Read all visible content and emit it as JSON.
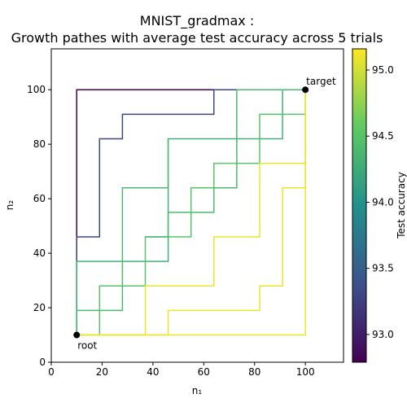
{
  "chart_data": {
    "type": "line",
    "title": [
      "MNIST_gradmax :",
      "Growth pathes with average test accuracy across 5 trials"
    ],
    "x_label": "n₁",
    "y_label": "n₂",
    "xlim": [
      0,
      115
    ],
    "ylim": [
      0,
      115
    ],
    "xticks": [
      0,
      20,
      40,
      60,
      80,
      100
    ],
    "yticks": [
      0,
      20,
      40,
      60,
      80,
      100
    ],
    "colormap": "viridis",
    "colorbar": {
      "label": "Test accuracy",
      "clim": [
        92.79,
        95.16
      ],
      "ticks": [
        {
          "value": 93,
          "label": "93.0"
        },
        {
          "value": 93.5,
          "label": "93.5"
        },
        {
          "value": 94,
          "label": "94.0"
        },
        {
          "value": 94.5,
          "label": "94.5"
        },
        {
          "value": 95,
          "label": "95.0"
        }
      ]
    },
    "series": [
      {
        "value": 92.8,
        "x": [
          10,
          10,
          100
        ],
        "y": [
          10,
          100,
          100
        ]
      },
      {
        "value": 93.3,
        "x": [
          10,
          10,
          19,
          19,
          28,
          28,
          64,
          64,
          100
        ],
        "y": [
          10,
          46,
          46,
          82,
          82,
          91,
          91,
          100,
          100
        ]
      },
      {
        "value": 94.3,
        "x": [
          10,
          10,
          46,
          46,
          91,
          91,
          100
        ],
        "y": [
          10,
          37,
          37,
          82,
          82,
          100,
          100
        ]
      },
      {
        "value": 94.4,
        "x": [
          10,
          10,
          28,
          28,
          46,
          46
        ],
        "y": [
          10,
          19,
          19,
          64,
          64,
          82
        ]
      },
      {
        "value": 94.5,
        "x": [
          10,
          19,
          19,
          37,
          37,
          55,
          55,
          64,
          64,
          82,
          82,
          100,
          100
        ],
        "y": [
          10,
          10,
          28,
          28,
          46,
          46,
          64,
          64,
          73,
          73,
          91,
          91,
          100
        ]
      },
      {
        "value": 94.4,
        "x": [
          37,
          46,
          46,
          64,
          64,
          73,
          73,
          100
        ],
        "y": [
          46,
          46,
          55,
          55,
          64,
          64,
          100,
          100
        ]
      },
      {
        "value": 95.1,
        "x": [
          10,
          37,
          37,
          64,
          64,
          82,
          82,
          100,
          100
        ],
        "y": [
          10,
          10,
          28,
          28,
          46,
          46,
          73,
          73,
          100
        ]
      },
      {
        "value": 95.1,
        "x": [
          10,
          46,
          46,
          82,
          82,
          91,
          91,
          100,
          100
        ],
        "y": [
          10,
          10,
          19,
          19,
          28,
          28,
          64,
          64,
          100
        ]
      },
      {
        "value": 95.1,
        "x": [
          10,
          100,
          100
        ],
        "y": [
          10,
          10,
          100
        ]
      }
    ],
    "points": [
      {
        "label": "root",
        "x": 10,
        "y": 10
      },
      {
        "label": "target",
        "x": 100,
        "y": 100
      }
    ]
  }
}
